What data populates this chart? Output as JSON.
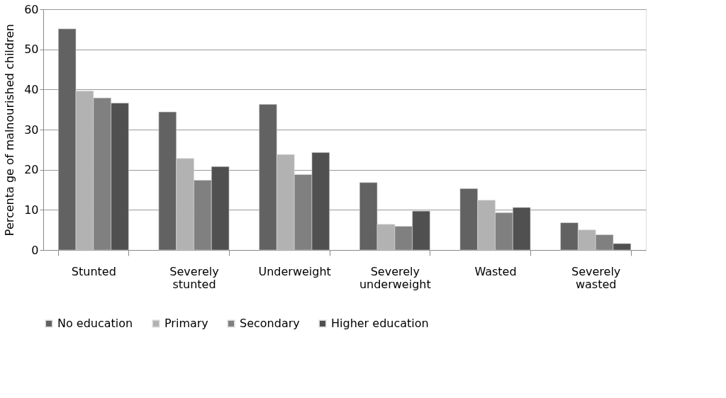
{
  "chart_data": {
    "type": "bar",
    "ylabel": "Percenta ge of malnourished children",
    "categories": [
      "Stunted",
      "Severely stunted",
      "Underweight",
      "Severely underweight",
      "Wasted",
      "Severely wasted"
    ],
    "series": [
      {
        "name": "No education",
        "color": "#626262",
        "values": [
          55.1,
          34.4,
          36.3,
          16.8,
          15.3,
          6.8
        ]
      },
      {
        "name": "Primary",
        "color": "#b2b2b2",
        "values": [
          39.6,
          22.8,
          23.8,
          6.4,
          12.4,
          5.0
        ]
      },
      {
        "name": "Secondary",
        "color": "#808080",
        "values": [
          37.9,
          17.4,
          18.8,
          5.9,
          9.3,
          3.8
        ]
      },
      {
        "name": "Higher education",
        "color": "#505050",
        "values": [
          36.6,
          20.8,
          24.3,
          9.7,
          10.6,
          1.6
        ]
      }
    ],
    "ylim": [
      0,
      60
    ],
    "yticks": [
      0,
      10,
      20,
      30,
      40,
      50,
      60
    ],
    "grid": "y",
    "legend": "bottom"
  }
}
